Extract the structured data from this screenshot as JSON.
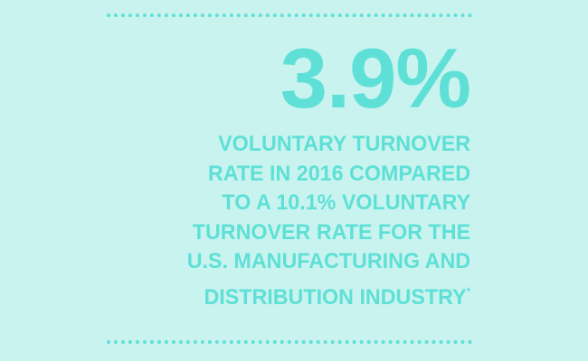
{
  "stat": "3.9%",
  "description": [
    "VOLUNTARY TURNOVER",
    "RATE IN 2016 COMPARED",
    "TO A 10.1% VOLUNTARY",
    "TURNOVER RATE FOR THE",
    "U.S. MANUFACTURING AND",
    "DISTRIBUTION INDUSTRY"
  ],
  "footnote_mark": "*"
}
